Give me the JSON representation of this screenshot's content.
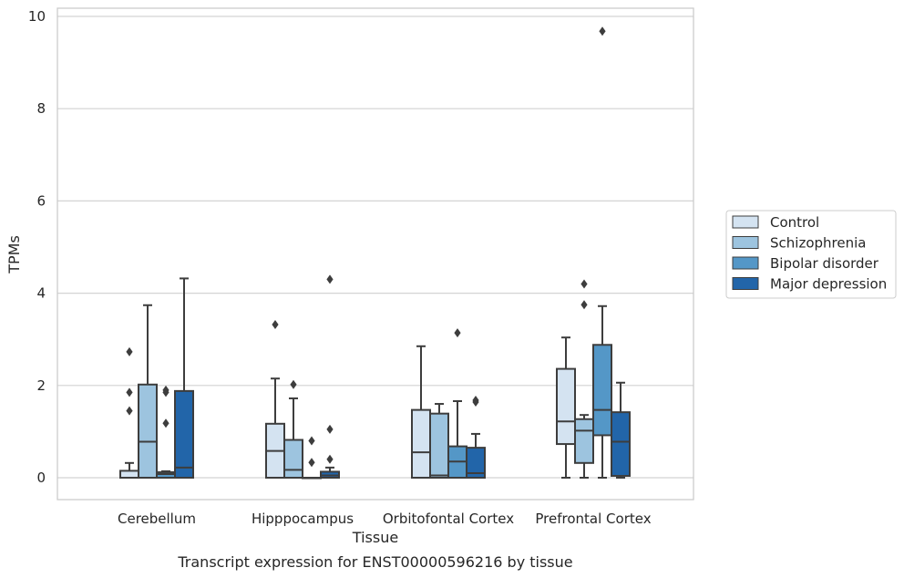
{
  "caption": "Transcript expression for ENST00000596216 by tissue",
  "chart_data": {
    "type": "boxplot",
    "xlabel": "Tissue",
    "ylabel": "TPMs",
    "ylim": [
      -0.45,
      10.2
    ],
    "yticks": [
      0,
      2,
      4,
      6,
      8,
      10
    ],
    "grid": true,
    "legend_position": "right, outside plot",
    "categories": [
      "Cerebellum",
      "Hipppocampus",
      "Orbitofontal Cortex",
      "Prefrontal Cortex"
    ],
    "series": [
      {
        "name": "Control",
        "color": "#d4e3f1",
        "boxes": [
          {
            "q1": 0.0,
            "median": 0.0,
            "q3": 0.15,
            "whisker_low": 0.0,
            "whisker_high": 0.32,
            "outliers": [
              1.45,
              1.85,
              2.73
            ]
          },
          {
            "q1": 0.0,
            "median": 0.58,
            "q3": 1.17,
            "whisker_low": 0.0,
            "whisker_high": 2.15,
            "outliers": [
              3.32
            ]
          },
          {
            "q1": 0.0,
            "median": 0.55,
            "q3": 1.47,
            "whisker_low": 0.0,
            "whisker_high": 2.85,
            "outliers": []
          },
          {
            "q1": 0.73,
            "median": 1.22,
            "q3": 2.36,
            "whisker_low": 0.0,
            "whisker_high": 3.04,
            "outliers": []
          }
        ]
      },
      {
        "name": "Schizophrenia",
        "color": "#9dc4df",
        "boxes": [
          {
            "q1": 0.0,
            "median": 0.78,
            "q3": 2.02,
            "whisker_low": 0.0,
            "whisker_high": 3.74,
            "outliers": []
          },
          {
            "q1": 0.0,
            "median": 0.17,
            "q3": 0.82,
            "whisker_low": 0.0,
            "whisker_high": 1.72,
            "outliers": [
              2.02
            ]
          },
          {
            "q1": 0.0,
            "median": 0.05,
            "q3": 1.39,
            "whisker_low": 0.0,
            "whisker_high": 1.6,
            "outliers": []
          },
          {
            "q1": 0.32,
            "median": 1.02,
            "q3": 1.27,
            "whisker_low": 0.0,
            "whisker_high": 1.36,
            "outliers": [
              3.75,
              4.2
            ]
          }
        ]
      },
      {
        "name": "Bipolar disorder",
        "color": "#5497c7",
        "boxes": [
          {
            "q1": 0.0,
            "median": 0.08,
            "q3": 0.12,
            "whisker_low": 0.0,
            "whisker_high": 0.14,
            "outliers": [
              1.18,
              1.85,
              1.9
            ]
          },
          {
            "q1": 0.0,
            "median": 0.0,
            "q3": 0.0,
            "whisker_low": 0.0,
            "whisker_high": 0.0,
            "outliers": [
              0.33,
              0.8
            ]
          },
          {
            "q1": 0.0,
            "median": 0.35,
            "q3": 0.68,
            "whisker_low": 0.0,
            "whisker_high": 1.66,
            "outliers": [
              3.14
            ]
          },
          {
            "q1": 0.92,
            "median": 1.47,
            "q3": 2.88,
            "whisker_low": 0.0,
            "whisker_high": 3.72,
            "outliers": [
              9.68
            ]
          }
        ]
      },
      {
        "name": "Major depression",
        "color": "#2265a9",
        "boxes": [
          {
            "q1": 0.0,
            "median": 0.22,
            "q3": 1.88,
            "whisker_low": 0.0,
            "whisker_high": 4.32,
            "outliers": []
          },
          {
            "q1": 0.0,
            "median": 0.05,
            "q3": 0.13,
            "whisker_low": 0.0,
            "whisker_high": 0.22,
            "outliers": [
              0.4,
              1.05,
              4.3
            ]
          },
          {
            "q1": 0.0,
            "median": 0.1,
            "q3": 0.65,
            "whisker_low": 0.0,
            "whisker_high": 0.95,
            "outliers": [
              1.64,
              1.68
            ]
          },
          {
            "q1": 0.04,
            "median": 0.78,
            "q3": 1.42,
            "whisker_low": 0.0,
            "whisker_high": 2.06,
            "outliers": []
          }
        ]
      }
    ]
  }
}
